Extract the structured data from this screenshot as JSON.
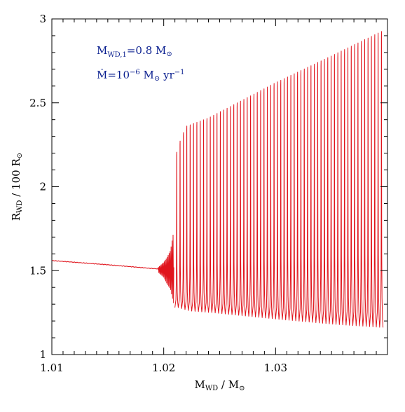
{
  "chart_data": {
    "type": "line",
    "title": "",
    "xlabel": {
      "main": "M",
      "sub": "WD",
      "rest": " / M",
      "sym": "⊙"
    },
    "ylabel": {
      "main": "R",
      "sub": "WD",
      "rest": " / 100 R",
      "sym": "⊙"
    },
    "xlim": [
      1.01,
      1.04
    ],
    "ylim": [
      1,
      3
    ],
    "xticks": [
      1.01,
      1.02,
      1.03
    ],
    "xtick_labels": [
      "1.01",
      "1.02",
      "1.03"
    ],
    "yticks": [
      1,
      1.5,
      2,
      2.5,
      3
    ],
    "ytick_labels": [
      "1",
      "1.5",
      "2",
      "2.5",
      "3"
    ],
    "annotations": [
      {
        "main": "M",
        "sub": "WD,1",
        "rest": "=0.8 M",
        "sym": "⊙",
        "tail": ""
      },
      {
        "main": "Ṁ",
        "sub": "",
        "rest": "=10",
        "sup": "−6",
        "tail_a": " M",
        "sym": "⊙",
        "tail": " yr",
        "sup2": "−1"
      }
    ],
    "color": "#e0141c",
    "series": [
      {
        "phase": "stable",
        "x": [
          1.01,
          1.015,
          1.0195
        ],
        "y": [
          1.56,
          1.535,
          1.51
        ]
      },
      {
        "phase": "onset",
        "x": [
          1.0195,
          1.02,
          1.0203,
          1.0206,
          1.0209
        ],
        "y_max": [
          1.52,
          1.55,
          1.58,
          1.62,
          1.74
        ],
        "y_min": [
          1.49,
          1.46,
          1.42,
          1.39,
          1.3
        ]
      },
      {
        "phase": "oscillation",
        "x_start": 1.021,
        "x_end": 1.0396,
        "cycles": 62,
        "envelope_x": [
          1.021,
          1.0215,
          1.022,
          1.024,
          1.03,
          1.035,
          1.0396
        ],
        "envelope_max": [
          2.17,
          2.28,
          2.36,
          2.41,
          2.62,
          2.78,
          2.93
        ],
        "envelope_min": [
          1.28,
          1.27,
          1.26,
          1.25,
          1.21,
          1.18,
          1.16
        ]
      }
    ]
  }
}
